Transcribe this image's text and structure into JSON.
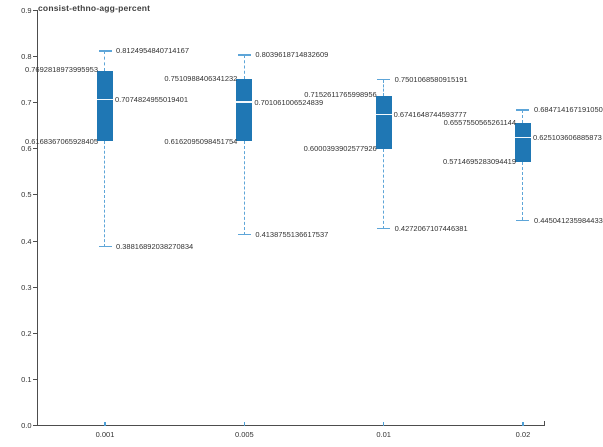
{
  "chart_data": {
    "type": "boxplot",
    "title": "consist-ethno-agg-percent",
    "xlabel": "",
    "ylabel": "",
    "ylim": [
      0.0,
      0.9
    ],
    "grid": false,
    "legend": "none",
    "y_ticks": [
      "0.9",
      "0.8",
      "0.7",
      "0.6",
      "0.5",
      "0.4",
      "0.3",
      "0.2",
      "0.1",
      "0.0"
    ],
    "x_categories": [
      "0.001",
      "0.005",
      "0.01",
      "0.02"
    ],
    "series": [
      {
        "category": "0.001",
        "upper_whisker": 0.8124954840714167,
        "q3": 0.7692818973995953,
        "median": 0.7074824955019401,
        "q1": 0.6168367065928405,
        "lower_whisker": 0.38816892038270834,
        "labels": {
          "upper_whisker": "0.8124954840714167",
          "q3": "0.7692818973995953",
          "median": "0.7074824955019401",
          "q1": "0.6168367065928405",
          "lower_whisker": "0.38816892038270834"
        }
      },
      {
        "category": "0.005",
        "upper_whisker": 0.8039618714832609,
        "q3": 0.7510988406341232,
        "median": 0.701061006524839,
        "q1": 0.6162095098451754,
        "lower_whisker": 0.4138755136617537,
        "labels": {
          "upper_whisker": "0.8039618714832609",
          "q3": "0.7510988406341232",
          "median": "0.701061006524839",
          "q1": "0.6162095098451754",
          "lower_whisker": "0.4138755136617537"
        }
      },
      {
        "category": "0.01",
        "upper_whisker": 0.7501068580915191,
        "q3": 0.7152611765998956,
        "median": 0.6741648744593777,
        "q1": 0.6000393902577926,
        "lower_whisker": 0.4272067107446381,
        "labels": {
          "upper_whisker": "0.7501068580915191",
          "q3": "0.7152611765998956",
          "median": "0.6741648744593777",
          "q1": "0.6000393902577926",
          "lower_whisker": "0.4272067107446381"
        }
      },
      {
        "category": "0.02",
        "upper_whisker": 0.68471416719105,
        "q3": 0.6557550565261144,
        "median": 0.625103606885873,
        "q1": 0.5714695283094419,
        "lower_whisker": 0.445041235984433,
        "labels": {
          "upper_whisker": "0.684714167191050",
          "q3": "0.6557550565261144",
          "median": "0.625103606885873",
          "q1": "0.5714695283094419",
          "lower_whisker": "0.445041235984433"
        }
      }
    ],
    "colors": {
      "box_fill": "#1f77b4",
      "whisker": "#5da5d8",
      "median_line": "#f4f9fd",
      "axis": "#4d4d4d",
      "tick_blue": "#4d9fd6",
      "text": "#333333",
      "title": "#3f3f3f"
    }
  }
}
